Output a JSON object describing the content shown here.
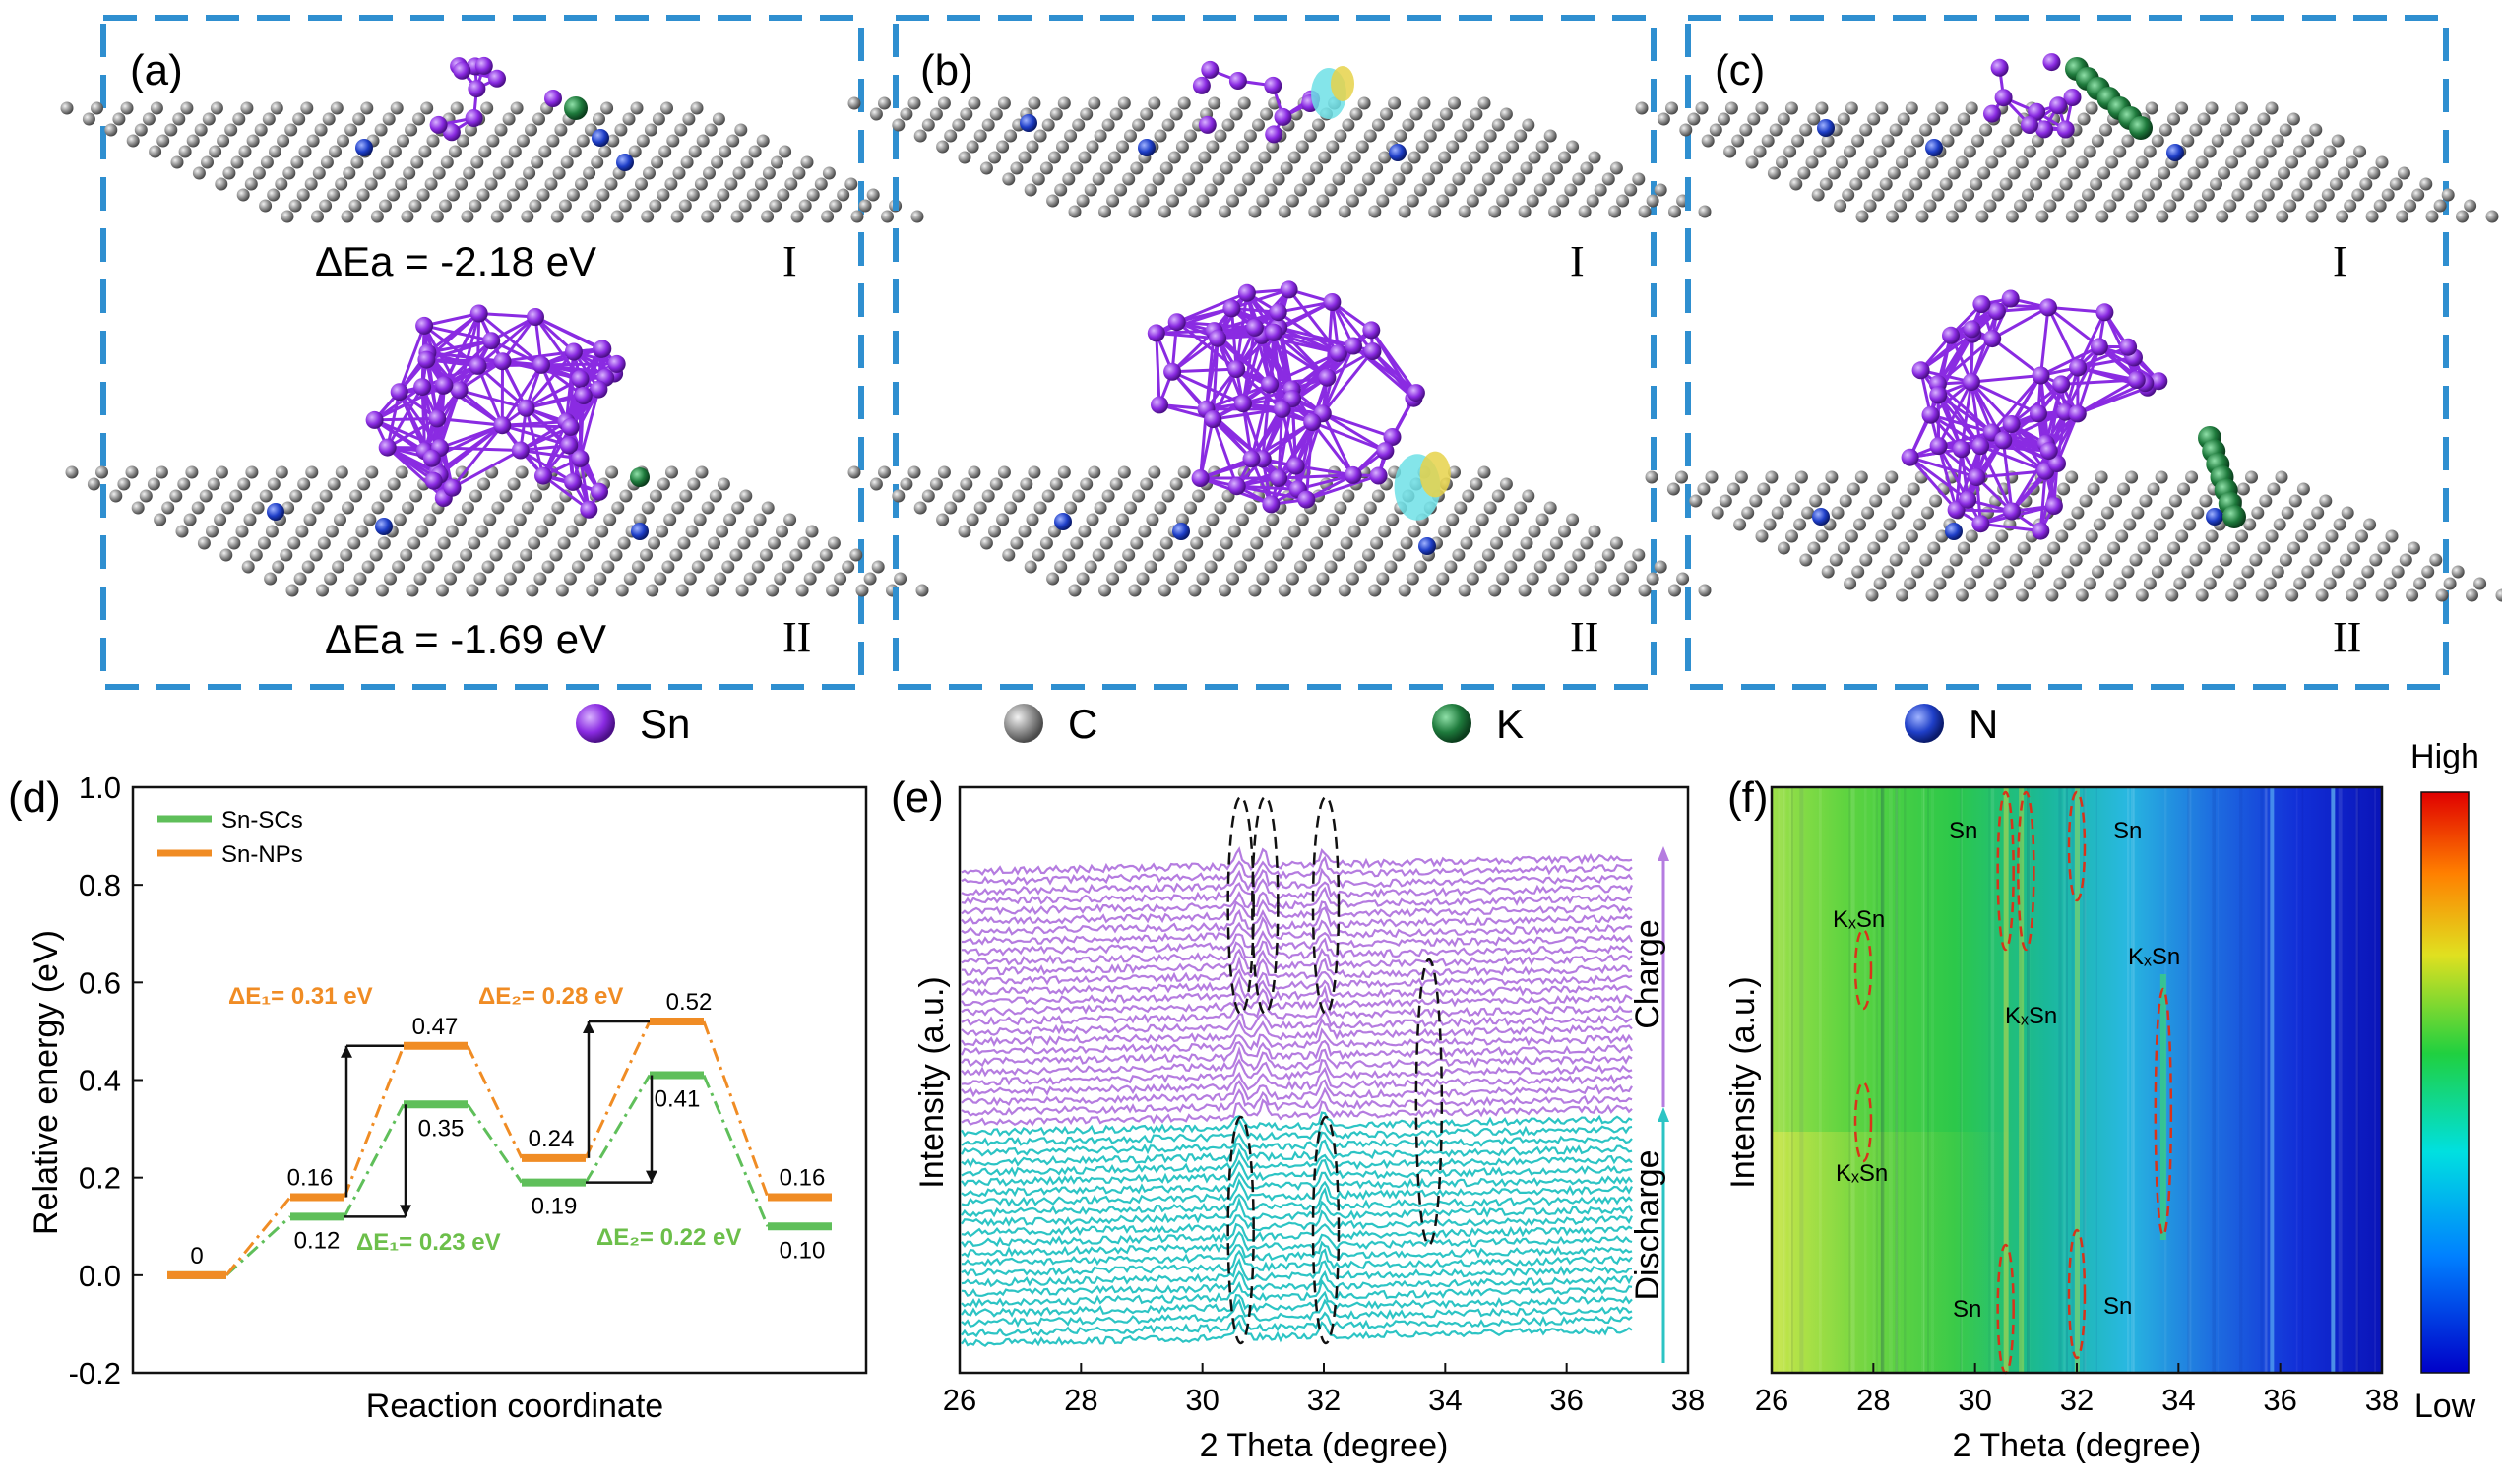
{
  "colors": {
    "frame": "#2f8fd0",
    "sn": "#8a2be2",
    "c": "#8c8c8c",
    "k": "#1e7a3c",
    "n": "#1f3fc8",
    "sc_line": "#5fbf5a",
    "np_line": "#f08c24",
    "charge": "#b57ce0",
    "discharge": "#2cc4c4",
    "label_green": "#6cbf4a",
    "label_orange": "#f08c24"
  },
  "panels": {
    "a": {
      "letter": "(a)",
      "ea_1": "ΔEa = -2.18 eV",
      "ea_2": "ΔEa = -1.69 eV",
      "roman_1": "I",
      "roman_2": "II"
    },
    "b": {
      "letter": "(b)",
      "roman_1": "I",
      "roman_2": "II"
    },
    "c": {
      "letter": "(c)",
      "roman_1": "I",
      "roman_2": "II"
    }
  },
  "legend_atoms": [
    {
      "label": "Sn",
      "color": "#8a2be2",
      "icon": "sn-atom-icon"
    },
    {
      "label": "C",
      "color": "#8c8c8c",
      "icon": "c-atom-icon"
    },
    {
      "label": "K",
      "color": "#1e7a3c",
      "icon": "k-atom-icon"
    },
    {
      "label": "N",
      "color": "#1f3fc8",
      "icon": "n-atom-icon"
    }
  ],
  "chart_data": [
    {
      "panel": "(d)",
      "type": "line",
      "xlabel": "Reaction coordinate",
      "ylabel": "Relative energy (eV)",
      "ylim": [
        -0.2,
        1.0
      ],
      "yticks": [
        "-0.2",
        "0.0",
        "0.2",
        "0.4",
        "0.6",
        "0.8",
        "1.0"
      ],
      "legend": "top-left",
      "series": [
        {
          "name": "Sn-SCs",
          "color": "#5fbf5a",
          "values": [
            0,
            0.12,
            0.35,
            0.19,
            0.41,
            0.1
          ],
          "labels": [
            "0",
            "0.12",
            "0.35",
            "0.19",
            "0.41",
            "0.10"
          ]
        },
        {
          "name": "Sn-NPs",
          "color": "#f08c24",
          "values": [
            0,
            0.16,
            0.47,
            0.24,
            0.52,
            0.16
          ],
          "labels": [
            "0",
            "0.16",
            "0.47",
            "0.24",
            "0.52",
            "0.16"
          ]
        }
      ],
      "annotations": {
        "np_e1": "ΔE₁= 0.31 eV",
        "np_e2": "ΔE₂= 0.28 eV",
        "sc_e1": "ΔE₁= 0.23 eV",
        "sc_e2": "ΔE₂= 0.22 eV"
      }
    },
    {
      "panel": "(e)",
      "type": "line",
      "xlabel": "2 Theta (degree)",
      "ylabel": "Intensity (a.u.)",
      "xlim": [
        26,
        38
      ],
      "xticks": [
        "26",
        "28",
        "30",
        "32",
        "34",
        "36",
        "38"
      ],
      "series": [
        {
          "name": "Discharge",
          "color": "#2cc4c4",
          "count": 22,
          "peaks": [
            30.6,
            32.0
          ]
        },
        {
          "name": "Charge",
          "color": "#b57ce0",
          "count": 26,
          "peaks": [
            30.6,
            31.0,
            32.0
          ]
        }
      ],
      "marker_peak": 33.7
    },
    {
      "panel": "(f)",
      "type": "heatmap",
      "xlabel": "2 Theta (degree)",
      "ylabel": "Intensity (a.u.)",
      "xlim": [
        26,
        38
      ],
      "xticks": [
        "26",
        "28",
        "30",
        "32",
        "34",
        "36",
        "38"
      ],
      "colorbar": {
        "high": "High",
        "low": "Low"
      },
      "annotations": {
        "sn_top_left": "Sn",
        "sn_top_right": "Sn",
        "kxsn_left_top": "KₓSn",
        "kxsn_mid": "KₓSn",
        "kxsn_right": "KₓSn",
        "kxsn_left_bottom": "KₓSn",
        "sn_bottom_left": "Sn",
        "sn_bottom_right": "Sn"
      }
    }
  ]
}
